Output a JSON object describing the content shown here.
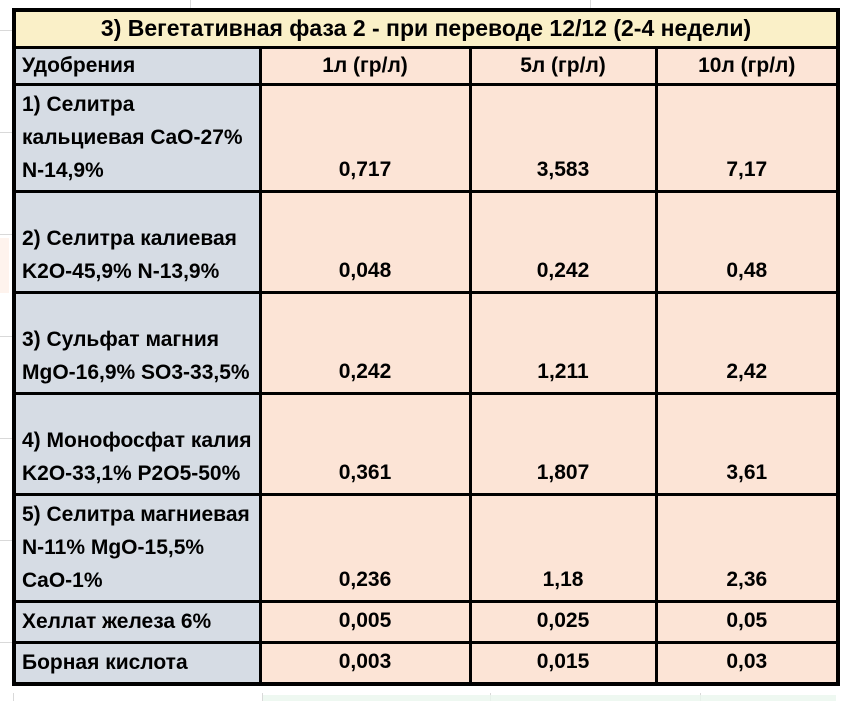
{
  "chart_data": {
    "type": "table",
    "title": "3) Вегетативная фаза 2 - при переводе 12/12 (2-4 недели)",
    "columns": [
      "Удобрения",
      "1л (гр/л)",
      "5л (гр/л)",
      "10л (гр/л)"
    ],
    "rows": [
      [
        "1) Селитра кальциевая CaO-27% N-14,9%",
        "0,717",
        "3,583",
        "7,17"
      ],
      [
        "2) Селитра калиевая K2O-45,9% N-13,9%",
        "0,048",
        "0,242",
        "0,48"
      ],
      [
        "3) Сульфат магния MgO-16,9% SO3-33,5%",
        "0,242",
        "1,211",
        "2,42"
      ],
      [
        "4) Монофосфат калия K2O-33,1% P2O5-50%",
        "0,361",
        "1,807",
        "3,61"
      ],
      [
        "5) Селитра магниевая N-11% MgO-15,5% CaO-1%",
        "0,236",
        "1,18",
        "2,36"
      ],
      [
        "Хеллат железа 6%",
        "0,005",
        "0,025",
        "0,05"
      ],
      [
        "Борная кислота",
        "0,003",
        "0,015",
        "0,03"
      ]
    ]
  },
  "colors": {
    "title_bg": "#FAF0C8",
    "label_bg": "#D6DCE4",
    "value_bg": "#FCE4D6",
    "border": "#000000",
    "gridline": "#D9D9D9"
  }
}
